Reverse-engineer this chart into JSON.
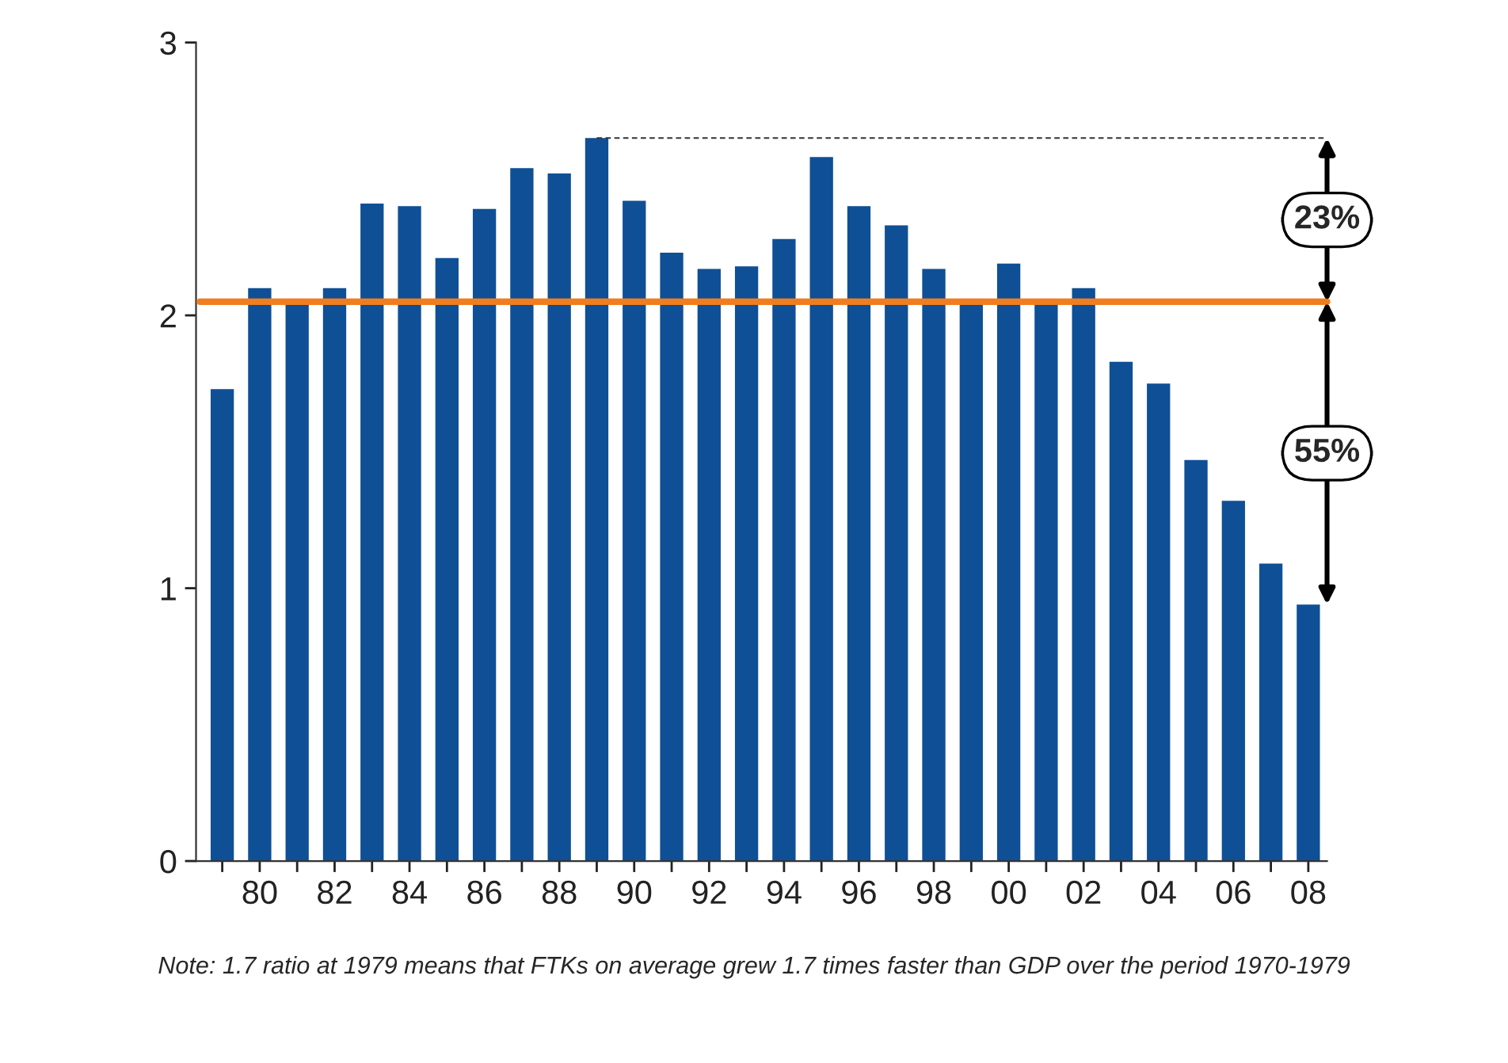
{
  "chart_data": {
    "type": "bar",
    "categories": [
      null,
      "80",
      null,
      "82",
      null,
      "84",
      null,
      "86",
      null,
      "88",
      null,
      "90",
      null,
      "92",
      null,
      "94",
      null,
      "96",
      null,
      "98",
      null,
      "00",
      null,
      "02",
      null,
      "04",
      null,
      "06",
      null,
      "08"
    ],
    "values": [
      1.73,
      2.1,
      2.04,
      2.1,
      2.41,
      2.4,
      2.21,
      2.39,
      2.54,
      2.52,
      2.65,
      2.42,
      2.23,
      2.17,
      2.18,
      2.28,
      2.58,
      2.4,
      2.33,
      2.17,
      2.05,
      2.19,
      2.04,
      2.1,
      1.83,
      1.75,
      1.47,
      1.32,
      1.09,
      0.94
    ],
    "color": "#0f4f96",
    "ylim": [
      0,
      3
    ],
    "yticks": [
      0,
      1,
      2,
      3
    ],
    "ref_lines": [
      {
        "axis": "y",
        "value": 2.05,
        "color": "#f07e1e",
        "line_style": "solid"
      },
      {
        "axis": "y",
        "value": 2.65,
        "color": "#333333",
        "line_style": "dashed"
      }
    ],
    "annotations": [
      "23%",
      "55%",
      "Note: 1.7 ratio at 1979 means that FTKs on average grew 1.7 times faster than GDP over the period 1970-1979"
    ]
  }
}
